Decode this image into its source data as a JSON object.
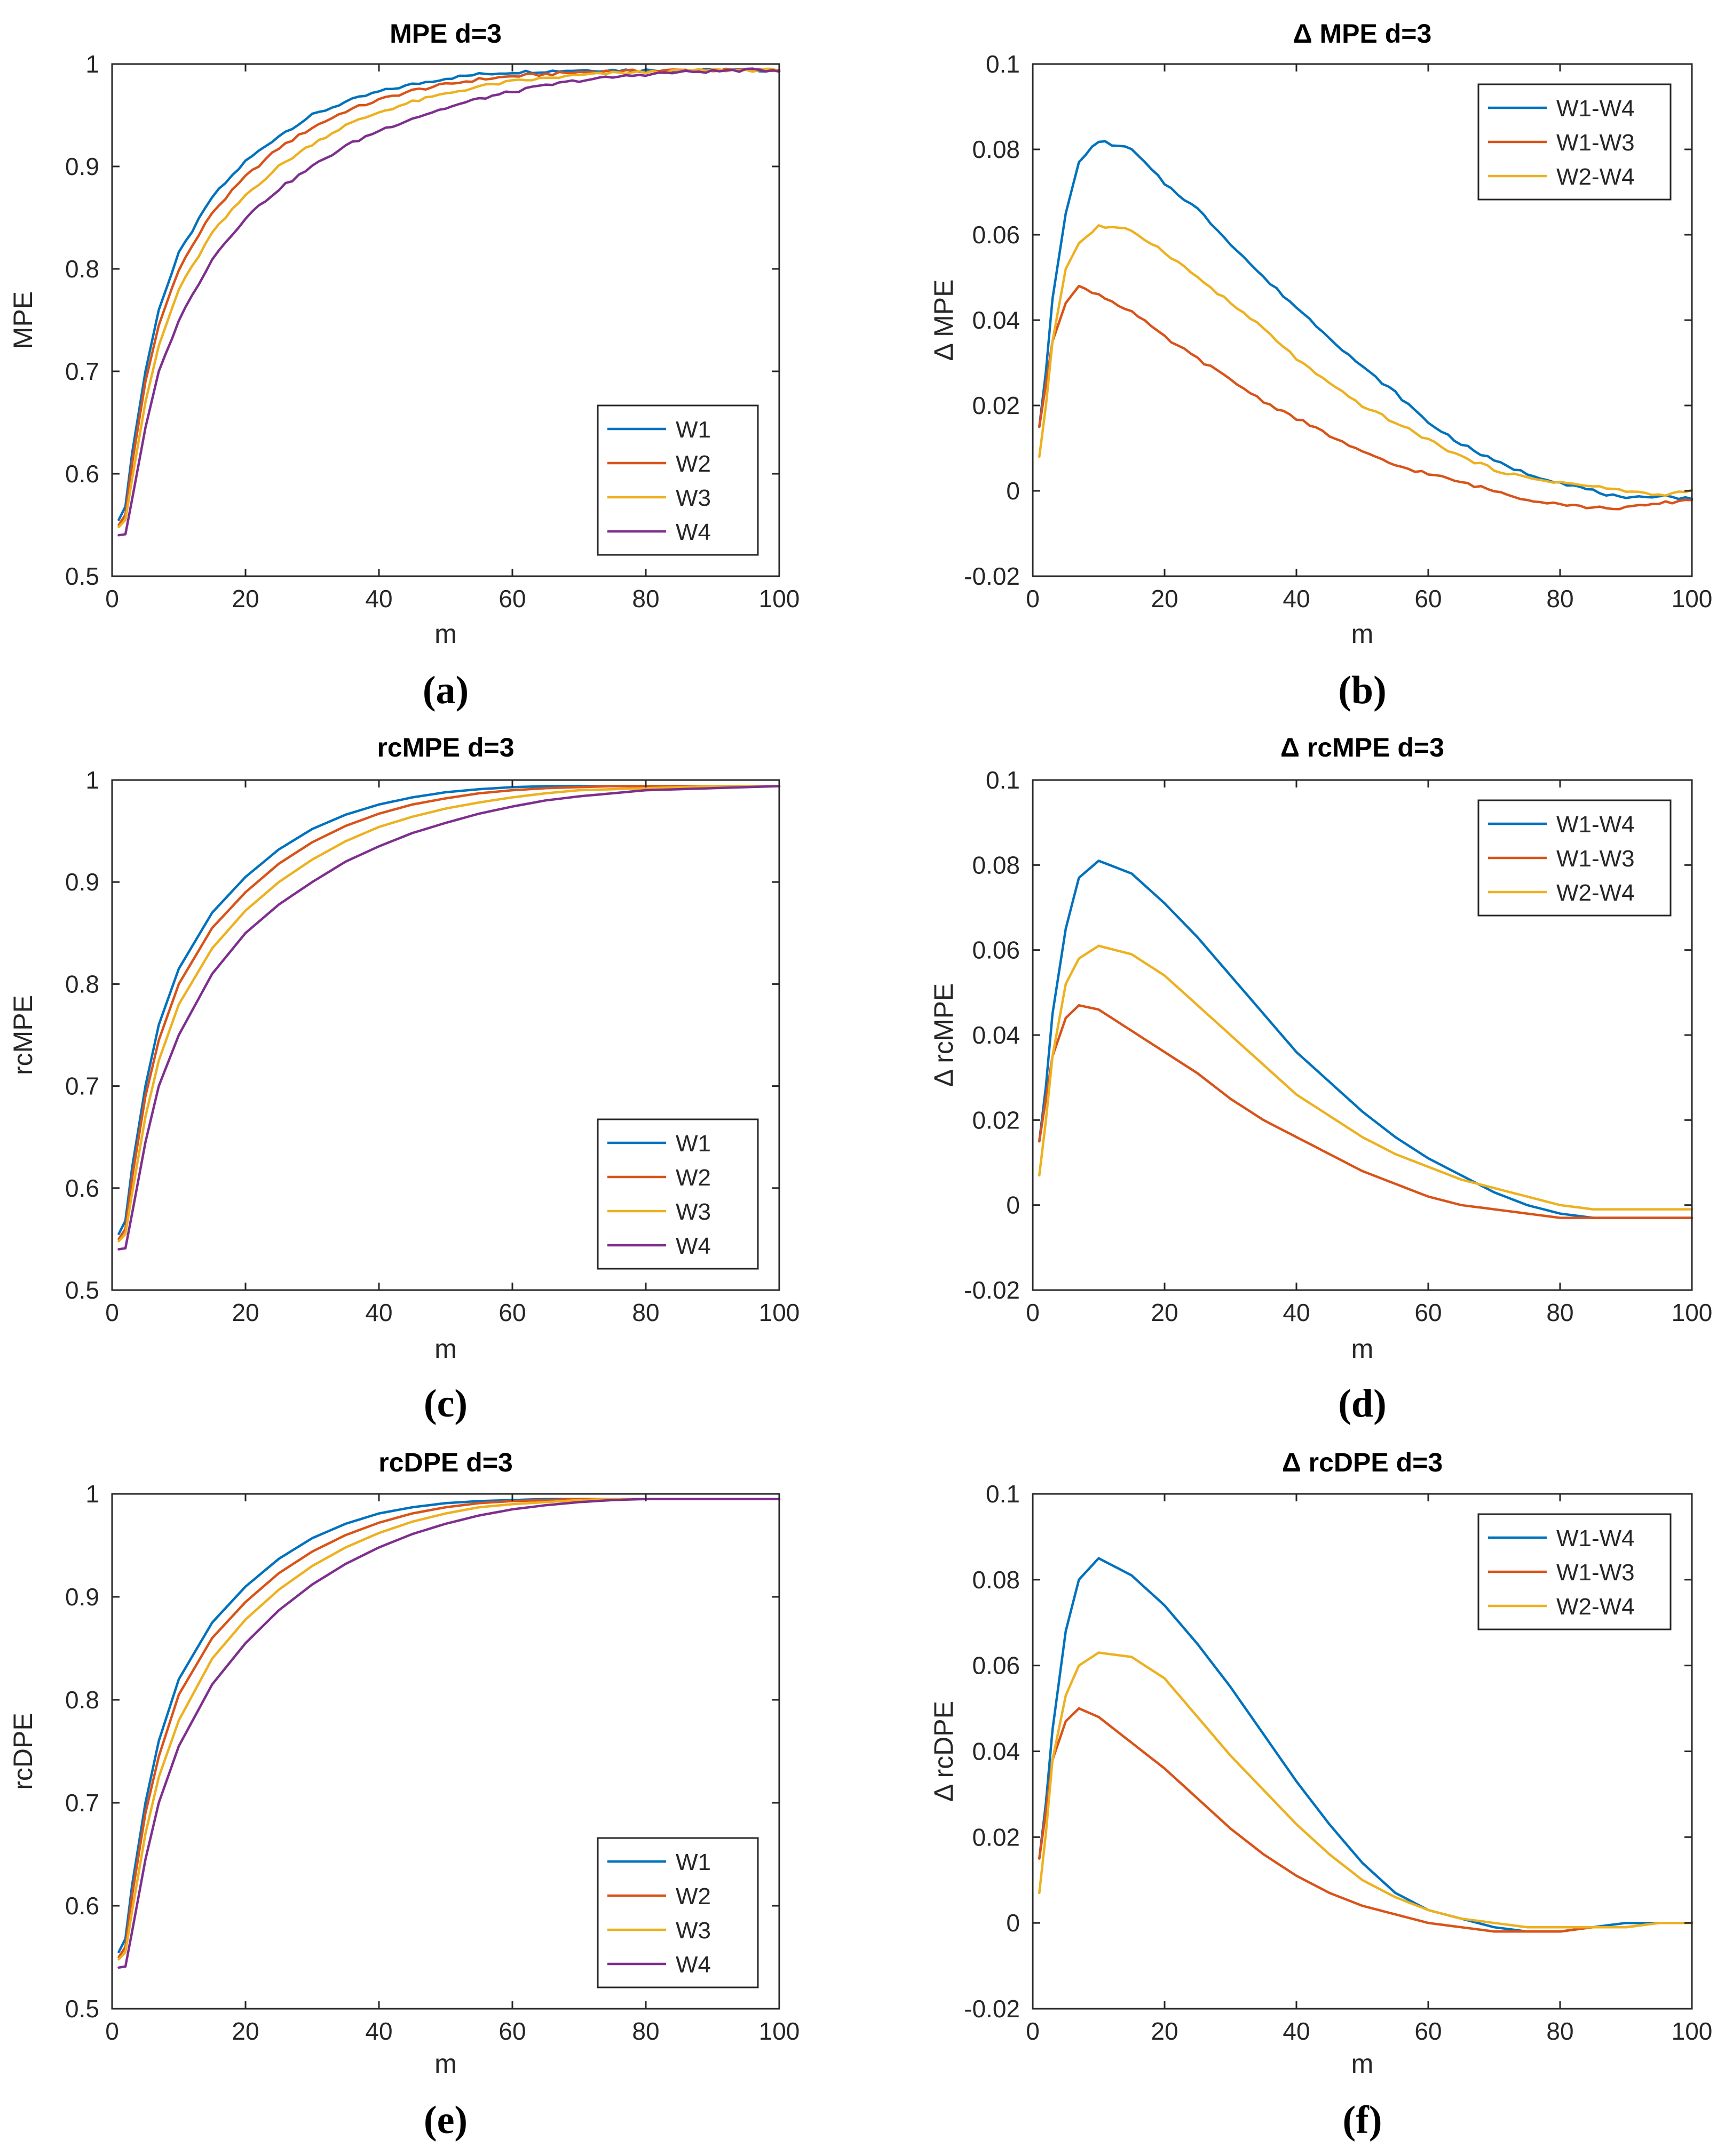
{
  "colors": {
    "W1": "#0072BD",
    "W2": "#D95319",
    "W3": "#EDB120",
    "W4": "#7E2F8E",
    "W1-W4": "#0072BD",
    "W1-W3": "#D95319",
    "W2-W4": "#EDB120",
    "axis": "#262626",
    "background": "#ffffff"
  },
  "chart_data": [
    {
      "id": "a",
      "type": "line",
      "caption": "(a)",
      "title": "MPE d=3",
      "xlabel": "m",
      "ylabel": "MPE",
      "xlim": [
        0,
        100
      ],
      "ylim": [
        0.5,
        1
      ],
      "xticks": [
        0,
        20,
        40,
        60,
        80,
        100
      ],
      "xtick_labels": [
        "0",
        "20",
        "40",
        "60",
        "80",
        "100"
      ],
      "yticks": [
        0.5,
        0.6,
        0.7,
        0.8,
        0.9,
        1
      ],
      "ytick_labels": [
        "0.5",
        "0.6",
        "0.7",
        "0.8",
        "0.9",
        "1"
      ],
      "grid": false,
      "legend": "bottom-right",
      "noisy": true,
      "x": [
        1,
        2,
        3,
        5,
        7,
        10,
        15,
        20,
        25,
        30,
        35,
        40,
        45,
        50,
        55,
        60,
        65,
        70,
        75,
        80,
        85,
        90,
        95,
        100
      ],
      "series": [
        {
          "name": "W1",
          "values": [
            0.555,
            0.568,
            0.62,
            0.7,
            0.76,
            0.815,
            0.87,
            0.905,
            0.93,
            0.95,
            0.963,
            0.973,
            0.98,
            0.986,
            0.99,
            0.992,
            0.993,
            0.994,
            0.994,
            0.994,
            0.994,
            0.994,
            0.994,
            0.994
          ]
        },
        {
          "name": "W2",
          "values": [
            0.55,
            0.56,
            0.61,
            0.69,
            0.745,
            0.8,
            0.855,
            0.89,
            0.918,
            0.938,
            0.954,
            0.965,
            0.974,
            0.98,
            0.985,
            0.988,
            0.99,
            0.992,
            0.993,
            0.993,
            0.994,
            0.994,
            0.994,
            0.994
          ]
        },
        {
          "name": "W3",
          "values": [
            0.548,
            0.555,
            0.595,
            0.67,
            0.725,
            0.78,
            0.835,
            0.872,
            0.9,
            0.922,
            0.94,
            0.953,
            0.963,
            0.971,
            0.978,
            0.983,
            0.986,
            0.989,
            0.991,
            0.992,
            0.993,
            0.994,
            0.994,
            0.994
          ]
        },
        {
          "name": "W4",
          "values": [
            0.54,
            0.541,
            0.575,
            0.645,
            0.7,
            0.75,
            0.81,
            0.85,
            0.878,
            0.9,
            0.92,
            0.935,
            0.947,
            0.957,
            0.966,
            0.973,
            0.979,
            0.984,
            0.987,
            0.99,
            0.992,
            0.993,
            0.994,
            0.994
          ]
        }
      ]
    },
    {
      "id": "b",
      "type": "line",
      "caption": "(b)",
      "title": "Δ MPE d=3",
      "xlabel": "m",
      "ylabel": "Δ MPE",
      "xlim": [
        0,
        100
      ],
      "ylim": [
        -0.02,
        0.1
      ],
      "xticks": [
        0,
        20,
        40,
        60,
        80,
        100
      ],
      "xtick_labels": [
        "0",
        "20",
        "40",
        "60",
        "80",
        "100"
      ],
      "yticks": [
        -0.02,
        0,
        0.02,
        0.04,
        0.06,
        0.08,
        0.1
      ],
      "ytick_labels": [
        "-0.02",
        "0",
        "0.02",
        "0.04",
        "0.06",
        "0.08",
        "0.1"
      ],
      "grid": false,
      "legend": "top-right",
      "noisy": true,
      "x": [
        1,
        2,
        3,
        5,
        7,
        10,
        15,
        20,
        25,
        30,
        35,
        40,
        45,
        50,
        55,
        60,
        65,
        70,
        75,
        80,
        85,
        90,
        95,
        100
      ],
      "series": [
        {
          "name": "W1-W4",
          "values": [
            0.015,
            0.028,
            0.045,
            0.065,
            0.077,
            0.082,
            0.08,
            0.072,
            0.066,
            0.058,
            0.05,
            0.043,
            0.036,
            0.029,
            0.023,
            0.016,
            0.011,
            0.007,
            0.004,
            0.002,
            0.0,
            -0.002,
            -0.001,
            -0.002
          ]
        },
        {
          "name": "W1-W3",
          "values": [
            0.015,
            0.025,
            0.035,
            0.044,
            0.048,
            0.046,
            0.042,
            0.036,
            0.031,
            0.026,
            0.021,
            0.017,
            0.013,
            0.009,
            0.006,
            0.004,
            0.002,
            0.0,
            -0.002,
            -0.003,
            -0.004,
            -0.004,
            -0.003,
            -0.002
          ]
        },
        {
          "name": "W2-W4",
          "values": [
            0.008,
            0.02,
            0.035,
            0.052,
            0.058,
            0.062,
            0.061,
            0.056,
            0.05,
            0.044,
            0.038,
            0.031,
            0.025,
            0.02,
            0.016,
            0.012,
            0.008,
            0.005,
            0.003,
            0.002,
            0.001,
            0.0,
            -0.001,
            0.0
          ]
        }
      ]
    },
    {
      "id": "c",
      "type": "line",
      "caption": "(c)",
      "title": "rcMPE d=3",
      "xlabel": "m",
      "ylabel": "rcMPE",
      "xlim": [
        0,
        100
      ],
      "ylim": [
        0.5,
        1
      ],
      "xticks": [
        0,
        20,
        40,
        60,
        80,
        100
      ],
      "xtick_labels": [
        "0",
        "20",
        "40",
        "60",
        "80",
        "100"
      ],
      "yticks": [
        0.5,
        0.6,
        0.7,
        0.8,
        0.9,
        1
      ],
      "ytick_labels": [
        "0.5",
        "0.6",
        "0.7",
        "0.8",
        "0.9",
        "1"
      ],
      "grid": false,
      "legend": "bottom-right",
      "noisy": false,
      "x": [
        1,
        2,
        3,
        5,
        7,
        10,
        15,
        20,
        25,
        30,
        35,
        40,
        45,
        50,
        55,
        60,
        65,
        70,
        75,
        80,
        85,
        90,
        95,
        100
      ],
      "series": [
        {
          "name": "W1",
          "values": [
            0.555,
            0.568,
            0.62,
            0.7,
            0.76,
            0.815,
            0.87,
            0.905,
            0.932,
            0.952,
            0.966,
            0.976,
            0.983,
            0.988,
            0.991,
            0.993,
            0.994,
            0.994,
            0.994,
            0.994,
            0.994,
            0.994,
            0.994,
            0.994
          ]
        },
        {
          "name": "W2",
          "values": [
            0.55,
            0.56,
            0.61,
            0.69,
            0.745,
            0.8,
            0.855,
            0.89,
            0.918,
            0.939,
            0.955,
            0.967,
            0.976,
            0.982,
            0.987,
            0.99,
            0.992,
            0.993,
            0.994,
            0.994,
            0.994,
            0.994,
            0.994,
            0.994
          ]
        },
        {
          "name": "W3",
          "values": [
            0.548,
            0.555,
            0.595,
            0.67,
            0.725,
            0.78,
            0.835,
            0.872,
            0.9,
            0.922,
            0.94,
            0.954,
            0.964,
            0.972,
            0.978,
            0.983,
            0.987,
            0.99,
            0.991,
            0.992,
            0.993,
            0.994,
            0.994,
            0.994
          ]
        },
        {
          "name": "W4",
          "values": [
            0.54,
            0.541,
            0.575,
            0.645,
            0.7,
            0.75,
            0.81,
            0.85,
            0.878,
            0.9,
            0.92,
            0.935,
            0.948,
            0.958,
            0.967,
            0.974,
            0.98,
            0.984,
            0.987,
            0.99,
            0.991,
            0.992,
            0.993,
            0.994
          ]
        }
      ]
    },
    {
      "id": "d",
      "type": "line",
      "caption": "(d)",
      "title": "Δ rcMPE d=3",
      "xlabel": "m",
      "ylabel": "Δ rcMPE",
      "xlim": [
        0,
        100
      ],
      "ylim": [
        -0.02,
        0.1
      ],
      "xticks": [
        0,
        20,
        40,
        60,
        80,
        100
      ],
      "xtick_labels": [
        "0",
        "20",
        "40",
        "60",
        "80",
        "100"
      ],
      "yticks": [
        -0.02,
        0,
        0.02,
        0.04,
        0.06,
        0.08,
        0.1
      ],
      "ytick_labels": [
        "-0.02",
        "0",
        "0.02",
        "0.04",
        "0.06",
        "0.08",
        "0.1"
      ],
      "grid": false,
      "legend": "top-right",
      "noisy": false,
      "x": [
        1,
        2,
        3,
        5,
        7,
        10,
        15,
        20,
        25,
        30,
        35,
        40,
        45,
        50,
        55,
        60,
        65,
        70,
        75,
        80,
        85,
        90,
        95,
        100
      ],
      "series": [
        {
          "name": "W1-W4",
          "values": [
            0.015,
            0.028,
            0.045,
            0.065,
            0.077,
            0.081,
            0.078,
            0.071,
            0.063,
            0.054,
            0.045,
            0.036,
            0.029,
            0.022,
            0.016,
            0.011,
            0.007,
            0.003,
            0.0,
            -0.002,
            -0.003,
            -0.003,
            -0.003,
            -0.003
          ]
        },
        {
          "name": "W1-W3",
          "values": [
            0.015,
            0.025,
            0.035,
            0.044,
            0.047,
            0.046,
            0.041,
            0.036,
            0.031,
            0.025,
            0.02,
            0.016,
            0.012,
            0.008,
            0.005,
            0.002,
            0.0,
            -0.001,
            -0.002,
            -0.003,
            -0.003,
            -0.003,
            -0.003,
            -0.003
          ]
        },
        {
          "name": "W2-W4",
          "values": [
            0.007,
            0.02,
            0.035,
            0.052,
            0.058,
            0.061,
            0.059,
            0.054,
            0.047,
            0.04,
            0.033,
            0.026,
            0.021,
            0.016,
            0.012,
            0.009,
            0.006,
            0.004,
            0.002,
            0.0,
            -0.001,
            -0.001,
            -0.001,
            -0.001
          ]
        }
      ]
    },
    {
      "id": "e",
      "type": "line",
      "caption": "(e)",
      "title": "rcDPE d=3",
      "xlabel": "m",
      "ylabel": "rcDPE",
      "xlim": [
        0,
        100
      ],
      "ylim": [
        0.5,
        1
      ],
      "xticks": [
        0,
        20,
        40,
        60,
        80,
        100
      ],
      "xtick_labels": [
        "0",
        "20",
        "40",
        "60",
        "80",
        "100"
      ],
      "yticks": [
        0.5,
        0.6,
        0.7,
        0.8,
        0.9,
        1
      ],
      "ytick_labels": [
        "0.5",
        "0.6",
        "0.7",
        "0.8",
        "0.9",
        "1"
      ],
      "grid": false,
      "legend": "bottom-right",
      "noisy": false,
      "x": [
        1,
        2,
        3,
        5,
        7,
        10,
        15,
        20,
        25,
        30,
        35,
        40,
        45,
        50,
        55,
        60,
        65,
        70,
        75,
        80,
        85,
        90,
        95,
        100
      ],
      "series": [
        {
          "name": "W1",
          "values": [
            0.555,
            0.568,
            0.62,
            0.7,
            0.76,
            0.82,
            0.875,
            0.91,
            0.937,
            0.957,
            0.971,
            0.981,
            0.987,
            0.991,
            0.993,
            0.994,
            0.995,
            0.995,
            0.995,
            0.995,
            0.995,
            0.995,
            0.995,
            0.995
          ]
        },
        {
          "name": "W2",
          "values": [
            0.55,
            0.56,
            0.61,
            0.69,
            0.745,
            0.805,
            0.86,
            0.895,
            0.923,
            0.944,
            0.96,
            0.972,
            0.981,
            0.987,
            0.991,
            0.993,
            0.994,
            0.995,
            0.995,
            0.995,
            0.995,
            0.995,
            0.995,
            0.995
          ]
        },
        {
          "name": "W3",
          "values": [
            0.548,
            0.555,
            0.595,
            0.67,
            0.725,
            0.78,
            0.84,
            0.878,
            0.907,
            0.93,
            0.948,
            0.962,
            0.973,
            0.981,
            0.987,
            0.99,
            0.992,
            0.994,
            0.995,
            0.995,
            0.995,
            0.995,
            0.995,
            0.995
          ]
        },
        {
          "name": "W4",
          "values": [
            0.54,
            0.541,
            0.575,
            0.645,
            0.7,
            0.755,
            0.815,
            0.855,
            0.887,
            0.912,
            0.932,
            0.948,
            0.961,
            0.971,
            0.979,
            0.985,
            0.989,
            0.992,
            0.994,
            0.995,
            0.995,
            0.995,
            0.995,
            0.995
          ]
        }
      ]
    },
    {
      "id": "f",
      "type": "line",
      "caption": "(f)",
      "title": "Δ rcDPE d=3",
      "xlabel": "m",
      "ylabel": "Δ rcDPE",
      "xlim": [
        0,
        100
      ],
      "ylim": [
        -0.02,
        0.1
      ],
      "xticks": [
        0,
        20,
        40,
        60,
        80,
        100
      ],
      "xtick_labels": [
        "0",
        "20",
        "40",
        "60",
        "80",
        "100"
      ],
      "yticks": [
        -0.02,
        0,
        0.02,
        0.04,
        0.06,
        0.08,
        0.1
      ],
      "ytick_labels": [
        "-0.02",
        "0",
        "0.02",
        "0.04",
        "0.06",
        "0.08",
        "0.1"
      ],
      "grid": false,
      "legend": "top-right",
      "noisy": false,
      "x": [
        1,
        2,
        3,
        5,
        7,
        10,
        15,
        20,
        25,
        30,
        35,
        40,
        45,
        50,
        55,
        60,
        65,
        70,
        75,
        80,
        85,
        90,
        95,
        100
      ],
      "series": [
        {
          "name": "W1-W4",
          "values": [
            0.015,
            0.028,
            0.045,
            0.068,
            0.08,
            0.085,
            0.081,
            0.074,
            0.065,
            0.055,
            0.044,
            0.033,
            0.023,
            0.014,
            0.007,
            0.003,
            0.001,
            -0.001,
            -0.002,
            -0.002,
            -0.001,
            0.0,
            0.0,
            0.0
          ]
        },
        {
          "name": "W1-W3",
          "values": [
            0.015,
            0.026,
            0.038,
            0.047,
            0.05,
            0.048,
            0.042,
            0.036,
            0.029,
            0.022,
            0.016,
            0.011,
            0.007,
            0.004,
            0.002,
            0.0,
            -0.001,
            -0.002,
            -0.002,
            -0.002,
            -0.001,
            -0.001,
            0.0,
            0.0
          ]
        },
        {
          "name": "W2-W4",
          "values": [
            0.007,
            0.021,
            0.038,
            0.053,
            0.06,
            0.063,
            0.062,
            0.057,
            0.048,
            0.039,
            0.031,
            0.023,
            0.016,
            0.01,
            0.006,
            0.003,
            0.001,
            0.0,
            -0.001,
            -0.001,
            -0.001,
            -0.001,
            0.0,
            0.0
          ]
        }
      ]
    }
  ]
}
